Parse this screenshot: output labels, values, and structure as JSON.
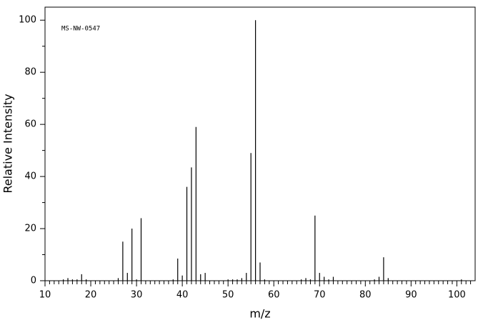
{
  "chart_data": {
    "type": "stem",
    "annotation": "MS-NW-0547",
    "xlabel": "m/z",
    "ylabel": "Relative Intensity",
    "x": [
      14,
      15,
      16,
      17,
      18,
      19,
      26,
      27,
      28,
      29,
      30,
      31,
      38,
      39,
      40,
      41,
      42,
      43,
      44,
      45,
      50,
      51,
      52,
      53,
      54,
      55,
      56,
      57,
      58,
      66,
      67,
      68,
      69,
      70,
      71,
      72,
      73,
      82,
      83,
      84,
      85,
      101
    ],
    "values": [
      0.5,
      1,
      0.5,
      0.5,
      2.5,
      0.5,
      1,
      15,
      3,
      20,
      0.5,
      24,
      0.5,
      8.5,
      2,
      36,
      43.5,
      59,
      2.5,
      3,
      0.5,
      0.5,
      0.5,
      1,
      3,
      49,
      100,
      7,
      0.5,
      0.5,
      1,
      0.5,
      25,
      3,
      1.5,
      0.5,
      1.5,
      0.5,
      1.5,
      9,
      1,
      0.5
    ],
    "color": "#000000",
    "xlim": [
      10,
      104
    ],
    "ylim": [
      0,
      105
    ],
    "xticks": [
      10,
      20,
      30,
      40,
      50,
      60,
      70,
      80,
      90,
      100
    ],
    "yticks": [
      0,
      20,
      40,
      60,
      80,
      100
    ],
    "xminorticks": [
      11,
      12,
      13,
      14,
      15,
      16,
      17,
      18,
      19,
      21,
      22,
      23,
      24,
      25,
      26,
      27,
      28,
      29,
      31,
      32,
      33,
      34,
      35,
      36,
      37,
      38,
      39,
      41,
      42,
      43,
      44,
      45,
      46,
      47,
      48,
      49,
      51,
      52,
      53,
      54,
      55,
      56,
      57,
      58,
      59,
      61,
      62,
      63,
      64,
      65,
      66,
      67,
      68,
      69,
      71,
      72,
      73,
      74,
      75,
      76,
      77,
      78,
      79,
      81,
      82,
      83,
      84,
      85,
      86,
      87,
      88,
      89,
      91,
      92,
      93,
      94,
      95,
      96,
      97,
      98,
      99,
      101,
      102,
      103
    ],
    "yminorticks": [
      10,
      30,
      50,
      70,
      90
    ]
  }
}
